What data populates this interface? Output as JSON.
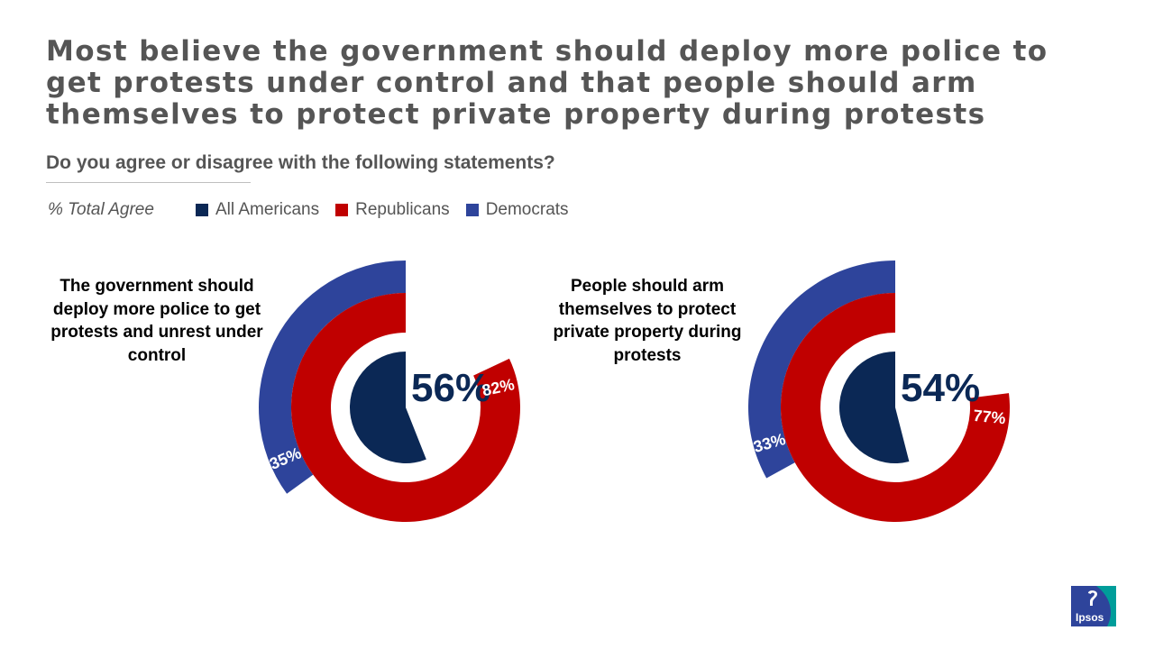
{
  "title": "Most believe the government should deploy more police to get protests under control and that people should arm themselves to protect private property during protests",
  "subtitle": "Do you agree or disagree with the following statements?",
  "legend": {
    "title": "% Total Agree",
    "items": [
      {
        "label": "All Americans",
        "color": "#0b2855"
      },
      {
        "label": "Republicans",
        "color": "#c00000"
      },
      {
        "label": "Democrats",
        "color": "#2e449b"
      }
    ]
  },
  "chart_data": [
    {
      "type": "pie",
      "chart_kind": "concentric radial rings",
      "title": "The government should deploy more police to get protests and unrest under control",
      "series": [
        {
          "name": "All Americans",
          "value": 56,
          "label": "56%",
          "color": "#0b2855"
        },
        {
          "name": "Republicans",
          "value": 82,
          "label": "82%",
          "color": "#c00000"
        },
        {
          "name": "Democrats",
          "value": 35,
          "label": "35%",
          "color": "#2e449b"
        }
      ]
    },
    {
      "type": "pie",
      "chart_kind": "concentric radial rings",
      "title": "People should arm themselves to protect private property during protests",
      "series": [
        {
          "name": "All Americans",
          "value": 54,
          "label": "54%",
          "color": "#0b2855"
        },
        {
          "name": "Republicans",
          "value": 77,
          "label": "77%",
          "color": "#c00000"
        },
        {
          "name": "Democrats",
          "value": 33,
          "label": "33%",
          "color": "#2e449b"
        }
      ]
    }
  ],
  "logo": {
    "text": "Ipsos",
    "color_primary": "#2e449b",
    "color_secondary": "#009d9a"
  }
}
